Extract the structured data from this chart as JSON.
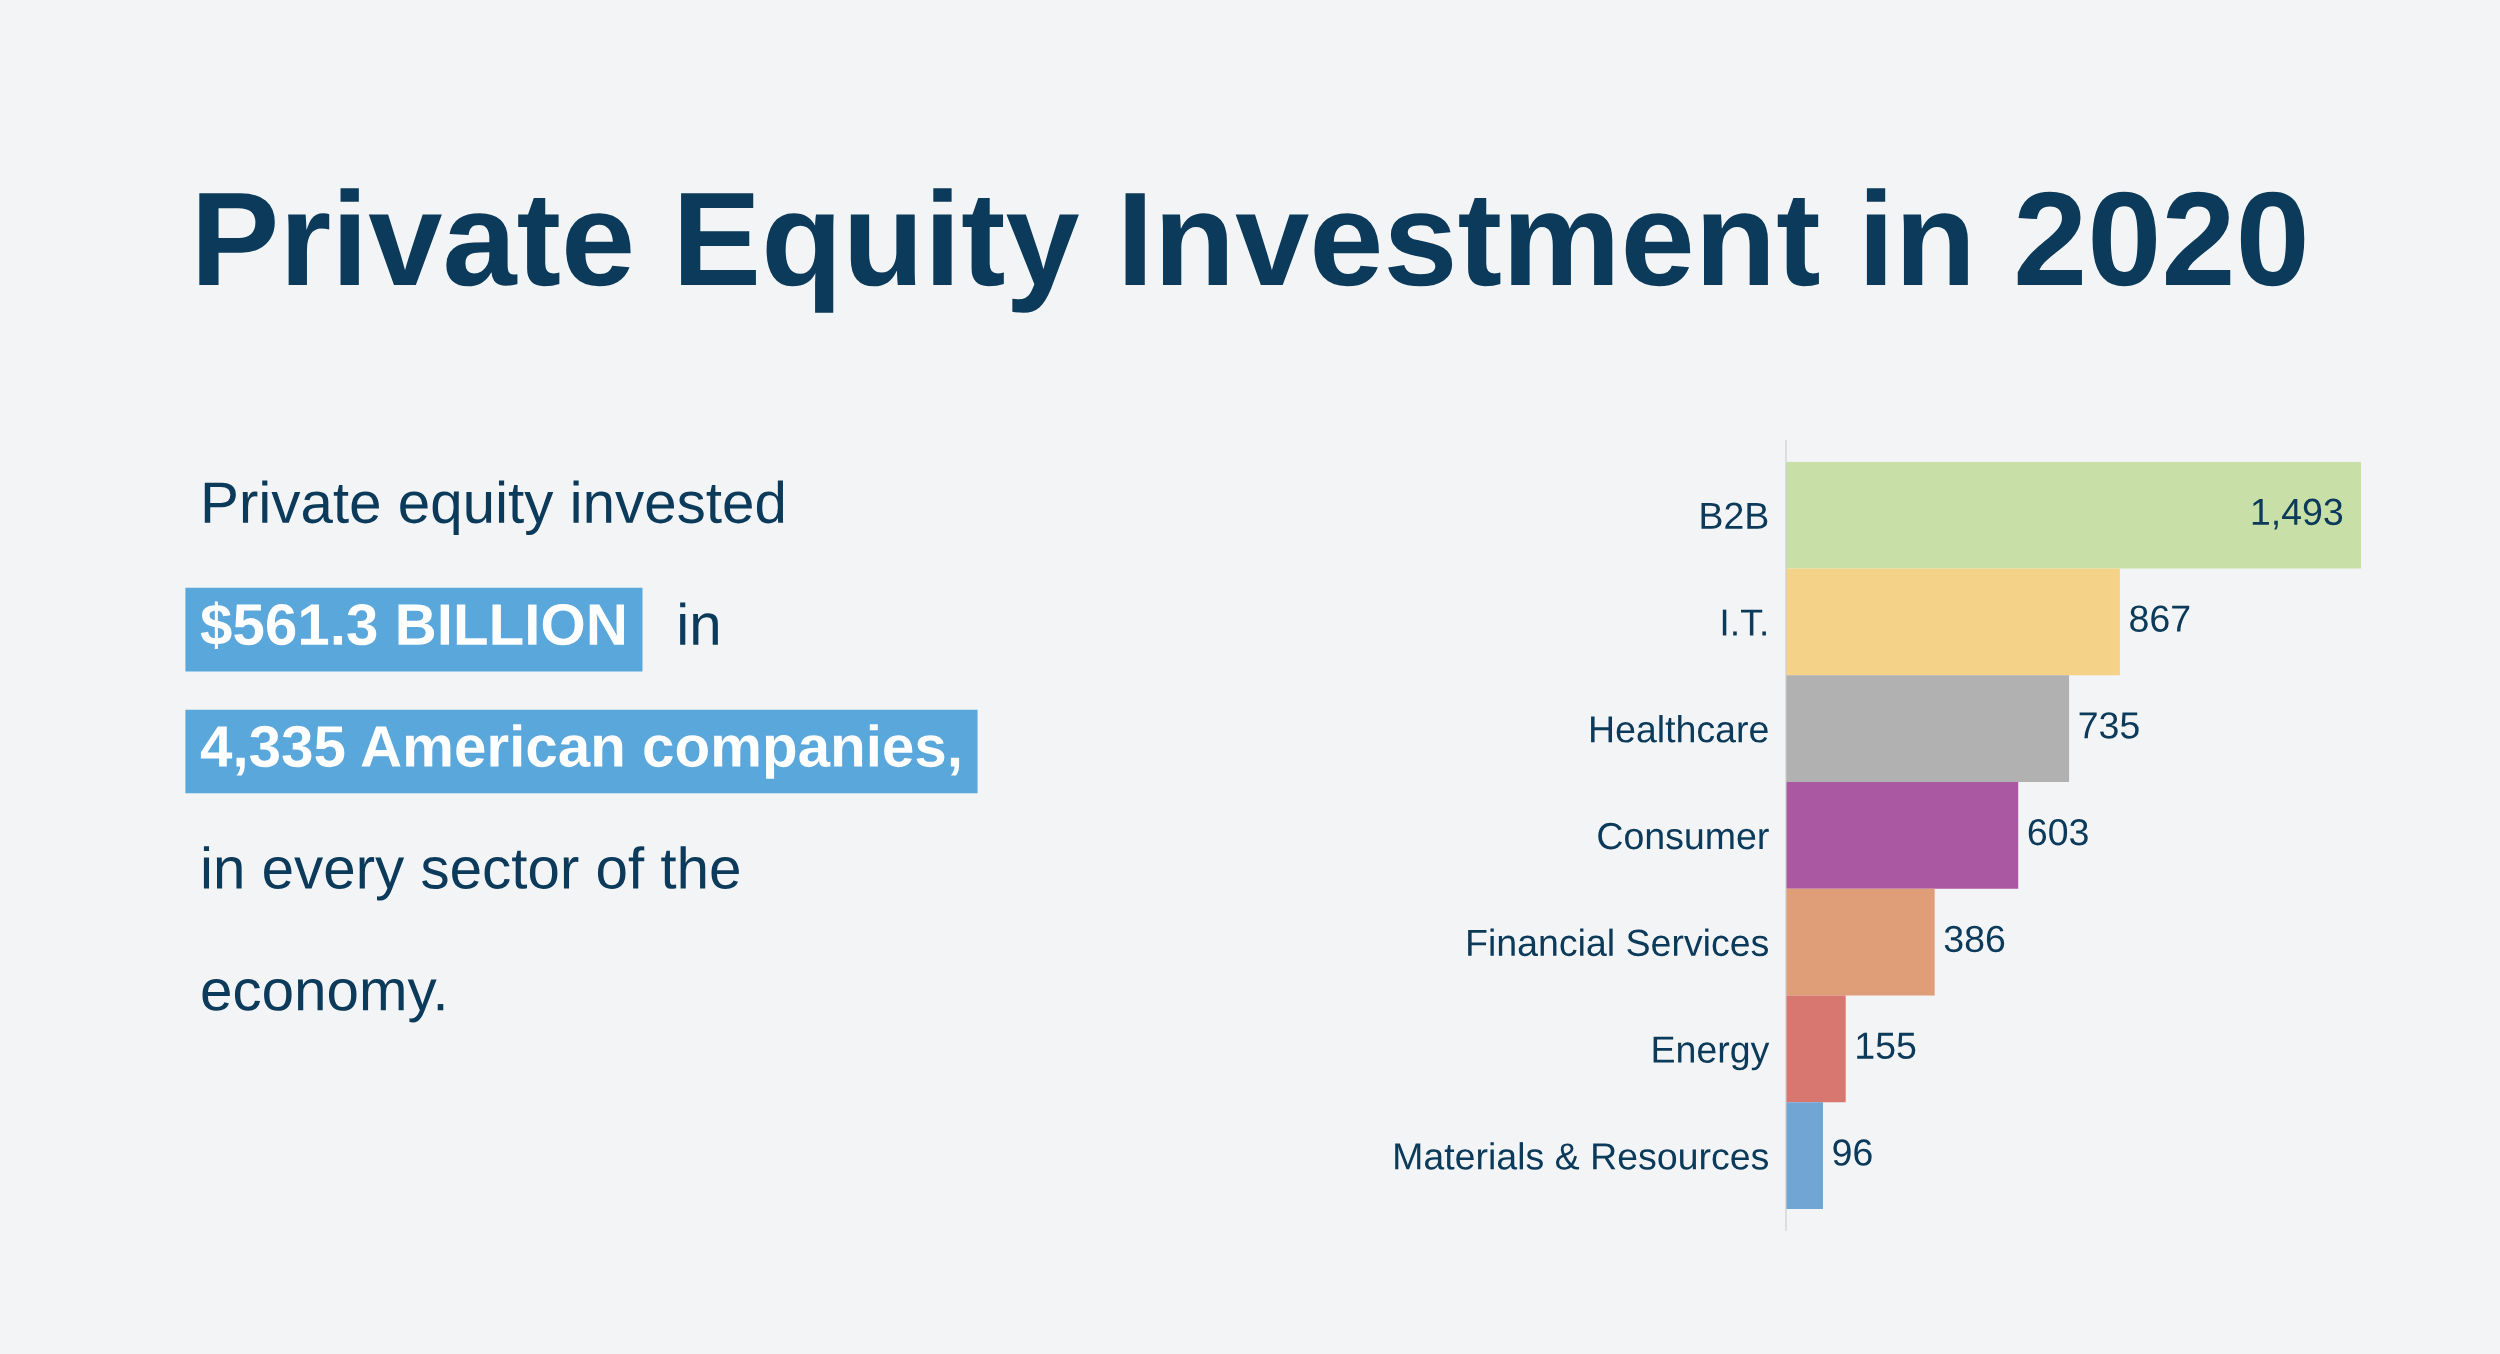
{
  "chart_data": {
    "type": "bar",
    "orientation": "horizontal",
    "title": "Private Equity Investment in 2020",
    "categories": [
      "B2B",
      "I.T.",
      "Healthcare",
      "Consumer",
      "Financial Services",
      "Energy",
      "Materials & Resources"
    ],
    "values": [
      1493,
      867,
      735,
      603,
      386,
      155,
      96
    ],
    "value_labels": [
      "1,493",
      "867",
      "735",
      "603",
      "386",
      "155",
      "96"
    ],
    "colors": [
      "#c9dfa8",
      "#f4d389",
      "#b1b1b1",
      "#aa58a1",
      "#e09e78",
      "#d87670",
      "#70a5d4"
    ],
    "annotations": [
      "Private equity invested",
      "$561.3 BILLION",
      "in",
      "4,335 American companies,",
      "in every sector of the",
      "economy."
    ],
    "grid": false,
    "legend": false
  }
}
